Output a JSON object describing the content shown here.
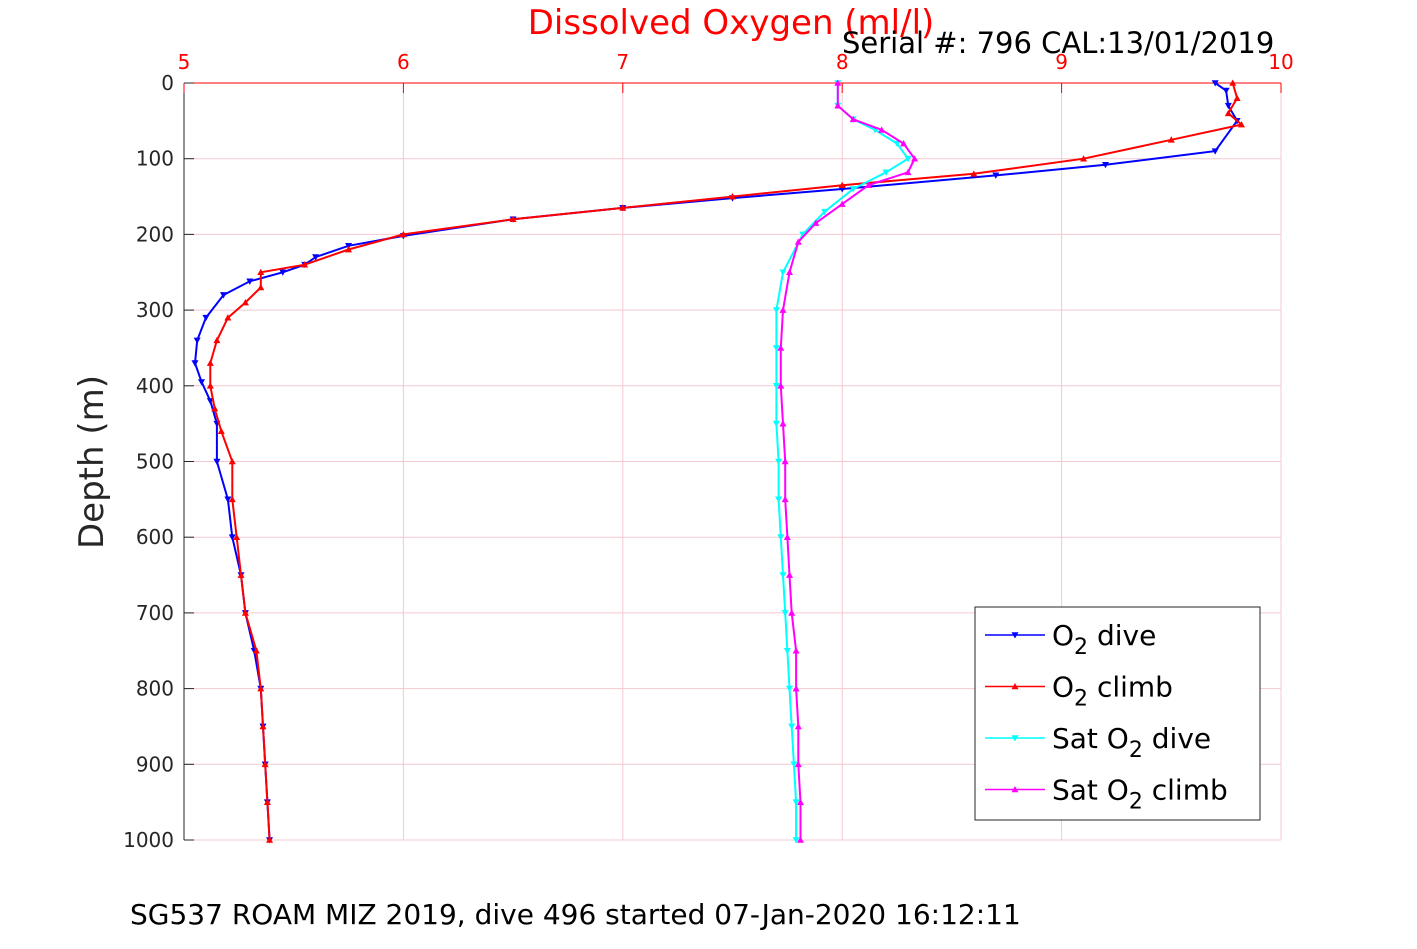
{
  "footer": "SG537 ROAM MIZ 2019, dive 496 started 07-Jan-2020 16:12:11",
  "serial": "Serial #: 796  CAL:13/01/2019",
  "chart_data": {
    "type": "line",
    "title": "Dissolved Oxygen (ml/l)",
    "xlabel": "Dissolved Oxygen (ml/l)",
    "ylabel": "Depth (m)",
    "xlim": [
      5,
      10
    ],
    "ylim": [
      0,
      1000
    ],
    "y_reversed": true,
    "x_axis_position": "top",
    "xticks": [
      "5",
      "6",
      "7",
      "8",
      "9",
      "10"
    ],
    "yticks": [
      "0",
      "100",
      "200",
      "300",
      "400",
      "500",
      "600",
      "700",
      "800",
      "900",
      "1000"
    ],
    "grid": true,
    "legend_position": "bottom-right",
    "colors": {
      "title": "#ff0000",
      "xticks": "#ff0000",
      "grid": "#f3c9d0"
    },
    "series": [
      {
        "name": "O2 dive",
        "legend_main": "O",
        "legend_sub": "2",
        "legend_tail": " dive",
        "color": "#0000ff",
        "marker": "triangle-down",
        "points": [
          [
            9.7,
            0
          ],
          [
            9.75,
            10
          ],
          [
            9.76,
            30
          ],
          [
            9.8,
            50
          ],
          [
            9.7,
            90
          ],
          [
            9.2,
            108
          ],
          [
            8.7,
            122
          ],
          [
            8.0,
            140
          ],
          [
            7.5,
            152
          ],
          [
            7.0,
            165
          ],
          [
            6.5,
            180
          ],
          [
            6.0,
            202
          ],
          [
            5.75,
            215
          ],
          [
            5.6,
            230
          ],
          [
            5.55,
            240
          ],
          [
            5.45,
            250
          ],
          [
            5.3,
            262
          ],
          [
            5.18,
            280
          ],
          [
            5.1,
            310
          ],
          [
            5.06,
            340
          ],
          [
            5.05,
            370
          ],
          [
            5.08,
            395
          ],
          [
            5.12,
            420
          ],
          [
            5.15,
            450
          ],
          [
            5.15,
            500
          ],
          [
            5.2,
            550
          ],
          [
            5.22,
            600
          ],
          [
            5.26,
            650
          ],
          [
            5.28,
            700
          ],
          [
            5.32,
            750
          ],
          [
            5.35,
            800
          ],
          [
            5.36,
            850
          ],
          [
            5.37,
            900
          ],
          [
            5.38,
            950
          ],
          [
            5.39,
            1000
          ]
        ]
      },
      {
        "name": "O2 climb",
        "legend_main": "O",
        "legend_sub": "2",
        "legend_tail": " climb",
        "color": "#ff0000",
        "marker": "triangle-up",
        "points": [
          [
            9.78,
            0
          ],
          [
            9.8,
            20
          ],
          [
            9.76,
            40
          ],
          [
            9.82,
            55
          ],
          [
            9.5,
            75
          ],
          [
            9.1,
            100
          ],
          [
            8.6,
            120
          ],
          [
            8.0,
            135
          ],
          [
            7.5,
            150
          ],
          [
            7.0,
            165
          ],
          [
            6.5,
            180
          ],
          [
            6.0,
            200
          ],
          [
            5.75,
            220
          ],
          [
            5.55,
            240
          ],
          [
            5.35,
            250
          ],
          [
            5.35,
            270
          ],
          [
            5.28,
            290
          ],
          [
            5.2,
            310
          ],
          [
            5.15,
            340
          ],
          [
            5.12,
            370
          ],
          [
            5.12,
            400
          ],
          [
            5.14,
            430
          ],
          [
            5.17,
            460
          ],
          [
            5.22,
            500
          ],
          [
            5.22,
            550
          ],
          [
            5.24,
            600
          ],
          [
            5.26,
            650
          ],
          [
            5.28,
            700
          ],
          [
            5.33,
            750
          ],
          [
            5.35,
            800
          ],
          [
            5.36,
            850
          ],
          [
            5.37,
            900
          ],
          [
            5.38,
            950
          ],
          [
            5.39,
            1000
          ]
        ]
      },
      {
        "name": "Sat O2 dive",
        "legend_main": "Sat O",
        "legend_sub": "2",
        "legend_tail": " dive",
        "color": "#00ffff",
        "marker": "triangle-down",
        "points": [
          [
            7.98,
            0
          ],
          [
            7.98,
            30
          ],
          [
            8.05,
            48
          ],
          [
            8.15,
            62
          ],
          [
            8.25,
            80
          ],
          [
            8.3,
            100
          ],
          [
            8.2,
            118
          ],
          [
            8.05,
            140
          ],
          [
            7.92,
            170
          ],
          [
            7.82,
            200
          ],
          [
            7.73,
            250
          ],
          [
            7.7,
            300
          ],
          [
            7.7,
            350
          ],
          [
            7.7,
            400
          ],
          [
            7.7,
            450
          ],
          [
            7.71,
            500
          ],
          [
            7.71,
            550
          ],
          [
            7.72,
            600
          ],
          [
            7.73,
            650
          ],
          [
            7.74,
            700
          ],
          [
            7.75,
            750
          ],
          [
            7.76,
            800
          ],
          [
            7.77,
            850
          ],
          [
            7.78,
            900
          ],
          [
            7.79,
            950
          ],
          [
            7.79,
            1000
          ]
        ]
      },
      {
        "name": "Sat O2 climb",
        "legend_main": "Sat O",
        "legend_sub": "2",
        "legend_tail": " climb",
        "color": "#ff00ff",
        "marker": "triangle-up",
        "points": [
          [
            7.98,
            0
          ],
          [
            7.98,
            30
          ],
          [
            8.05,
            48
          ],
          [
            8.18,
            62
          ],
          [
            8.28,
            80
          ],
          [
            8.33,
            100
          ],
          [
            8.3,
            118
          ],
          [
            8.12,
            135
          ],
          [
            8.0,
            160
          ],
          [
            7.88,
            185
          ],
          [
            7.8,
            210
          ],
          [
            7.76,
            250
          ],
          [
            7.73,
            300
          ],
          [
            7.72,
            350
          ],
          [
            7.72,
            400
          ],
          [
            7.73,
            450
          ],
          [
            7.74,
            500
          ],
          [
            7.74,
            550
          ],
          [
            7.75,
            600
          ],
          [
            7.76,
            650
          ],
          [
            7.77,
            700
          ],
          [
            7.79,
            750
          ],
          [
            7.79,
            800
          ],
          [
            7.8,
            850
          ],
          [
            7.8,
            900
          ],
          [
            7.81,
            950
          ],
          [
            7.81,
            1000
          ]
        ]
      }
    ]
  }
}
